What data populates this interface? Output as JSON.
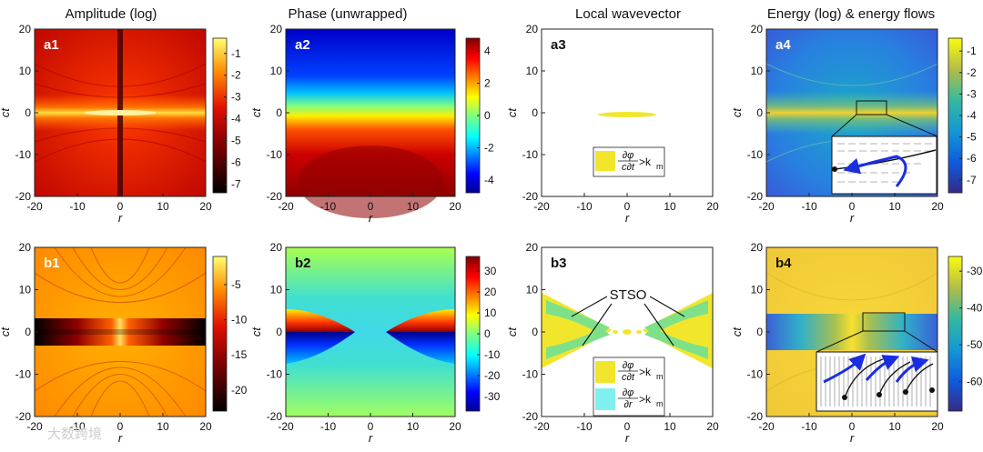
{
  "watermark": "大数跨境",
  "chart_data": [
    {
      "id": "a1",
      "type": "heatmap",
      "title": "Amplitude (log)",
      "panel_label": "a1",
      "xlabel": "r",
      "ylabel": "ct",
      "xlim": [
        -20,
        20
      ],
      "ylim": [
        -20,
        20
      ],
      "xticks": [
        "-20",
        "-10",
        "0",
        "10",
        "20"
      ],
      "yticks": [
        "20",
        "10",
        "0",
        "-10",
        "-20"
      ],
      "colorbar": {
        "colormap": "hot",
        "ticks": [
          "-1",
          "-2",
          "-3",
          "-4",
          "-5",
          "-6",
          "-7"
        ],
        "range": [
          -7.4,
          -0.3
        ]
      }
    },
    {
      "id": "a2",
      "type": "heatmap",
      "title": "Phase (unwrapped)",
      "panel_label": "a2",
      "xlabel": "r",
      "ylabel": "ct",
      "xlim": [
        -20,
        20
      ],
      "ylim": [
        -20,
        20
      ],
      "xticks": [
        "-20",
        "-10",
        "0",
        "10",
        "20"
      ],
      "yticks": [
        "20",
        "10",
        "0",
        "-10",
        "-20"
      ],
      "colorbar": {
        "colormap": "jet",
        "ticks": [
          "4",
          "2",
          "0",
          "-2",
          "-4"
        ],
        "range": [
          -4.8,
          4.8
        ]
      }
    },
    {
      "id": "a3",
      "type": "heatmap",
      "title": "Local wavevector",
      "panel_label": "a3",
      "xlabel": "r",
      "ylabel": "ct",
      "xlim": [
        -20,
        20
      ],
      "ylim": [
        -20,
        20
      ],
      "xticks": [
        "-20",
        "-10",
        "0",
        "10",
        "20"
      ],
      "yticks": [
        "20",
        "10",
        "0",
        "-10",
        "-20"
      ],
      "legend": [
        {
          "num": "∂φ",
          "den": "c∂t",
          "rel": ">k",
          "sub": "m",
          "color": "#f2e62c"
        }
      ]
    },
    {
      "id": "a4",
      "type": "heatmap",
      "title": "Energy (log) & energy flows",
      "panel_label": "a4",
      "xlabel": "r",
      "ylabel": "ct",
      "xlim": [
        -20,
        20
      ],
      "ylim": [
        -20,
        20
      ],
      "xticks": [
        "-20",
        "-10",
        "0",
        "10",
        "20"
      ],
      "yticks": [
        "20",
        "10",
        "0",
        "-10",
        "-20"
      ],
      "colorbar": {
        "colormap": "parula",
        "ticks": [
          "-1",
          "-2",
          "-3",
          "-4",
          "-5",
          "-6",
          "-7"
        ],
        "range": [
          -7.6,
          -0.4
        ]
      }
    },
    {
      "id": "b1",
      "type": "heatmap",
      "title": "",
      "panel_label": "b1",
      "xlabel": "r",
      "ylabel": "ct",
      "xlim": [
        -20,
        20
      ],
      "ylim": [
        -20,
        20
      ],
      "xticks": [
        "-20",
        "-10",
        "0",
        "10",
        "20"
      ],
      "yticks": [
        "20",
        "10",
        "0",
        "-10",
        "-20"
      ],
      "colorbar": {
        "colormap": "hot",
        "ticks": [
          "-5",
          "-10",
          "-15",
          "-20"
        ],
        "range": [
          -23,
          -1
        ]
      }
    },
    {
      "id": "b2",
      "type": "heatmap",
      "title": "",
      "panel_label": "b2",
      "xlabel": "r",
      "ylabel": "ct",
      "xlim": [
        -20,
        20
      ],
      "ylim": [
        -20,
        20
      ],
      "xticks": [
        "-20",
        "-10",
        "0",
        "10",
        "20"
      ],
      "yticks": [
        "20",
        "10",
        "0",
        "-10",
        "-20"
      ],
      "colorbar": {
        "colormap": "jet",
        "ticks": [
          "30",
          "20",
          "10",
          "0",
          "-10",
          "-20",
          "-30"
        ],
        "range": [
          -37,
          37
        ]
      }
    },
    {
      "id": "b3",
      "type": "heatmap",
      "title": "",
      "panel_label": "b3",
      "xlabel": "r",
      "ylabel": "ct",
      "xlim": [
        -20,
        20
      ],
      "ylim": [
        -20,
        20
      ],
      "xticks": [
        "-20",
        "-10",
        "0",
        "10",
        "20"
      ],
      "yticks": [
        "20",
        "10",
        "0",
        "-10",
        "-20"
      ],
      "annotation": "STSO",
      "legend": [
        {
          "num": "∂φ",
          "den": "c∂t",
          "rel": ">k",
          "sub": "m",
          "color": "#f2e62c"
        },
        {
          "num": "∂φ",
          "den": "∂r",
          "rel": ">k",
          "sub": "m",
          "color": "#7ff0ee"
        }
      ]
    },
    {
      "id": "b4",
      "type": "heatmap",
      "title": "",
      "panel_label": "b4",
      "xlabel": "r",
      "ylabel": "ct",
      "xlim": [
        -20,
        20
      ],
      "ylim": [
        -20,
        20
      ],
      "xticks": [
        "-20",
        "-10",
        "0",
        "10",
        "20"
      ],
      "yticks": [
        "20",
        "10",
        "0",
        "-10",
        "-20"
      ],
      "colorbar": {
        "colormap": "parula",
        "ticks": [
          "-30",
          "-40",
          "-50",
          "-60"
        ],
        "range": [
          -68,
          -26
        ]
      }
    }
  ]
}
